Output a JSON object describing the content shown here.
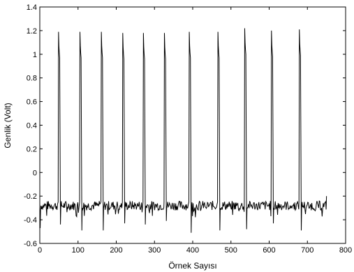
{
  "chart_data": {
    "type": "line",
    "title": "",
    "xlabel": "Örnek Sayısı",
    "ylabel": "Genlik (Volt)",
    "xlim": [
      0,
      800
    ],
    "ylim": [
      -0.6,
      1.4
    ],
    "xticks": [
      0,
      100,
      200,
      300,
      400,
      500,
      600,
      700,
      800
    ],
    "yticks": [
      -0.6,
      -0.4,
      -0.2,
      0,
      0.2,
      0.4,
      0.6,
      0.8,
      1,
      1.2,
      1.4
    ],
    "xtick_labels": [
      "0",
      "100",
      "200",
      "300",
      "400",
      "500",
      "600",
      "700",
      "800"
    ],
    "ytick_labels": [
      "-0.6",
      "-0.4",
      "-0.2",
      "0",
      "0.2",
      "0.4",
      "0.6",
      "0.8",
      "1",
      "1.2",
      "1.4"
    ],
    "grid": false,
    "line_color": "#000000",
    "series": [
      {
        "peaks": [
          {
            "start": 48,
            "peak": 1.19,
            "min": -0.44
          },
          {
            "start": 104,
            "peak": 1.19,
            "min": -0.49
          },
          {
            "start": 160,
            "peak": 1.19,
            "min": -0.49
          },
          {
            "start": 216,
            "peak": 1.18,
            "min": -0.43
          },
          {
            "start": 270,
            "peak": 1.18,
            "min": -0.44
          },
          {
            "start": 325,
            "peak": 1.18,
            "min": -0.41
          },
          {
            "start": 390,
            "peak": 1.19,
            "min": -0.51
          },
          {
            "start": 465,
            "peak": 1.19,
            "min": -0.49
          },
          {
            "start": 535,
            "peak": 1.22,
            "min": -0.48
          },
          {
            "start": 605,
            "peak": 1.2,
            "min": -0.43
          },
          {
            "start": 678,
            "peak": 1.21,
            "min": -0.49
          }
        ],
        "x_end": 750,
        "y_end": -0.2,
        "baseline": -0.28,
        "noise": 0.04
      }
    ]
  }
}
